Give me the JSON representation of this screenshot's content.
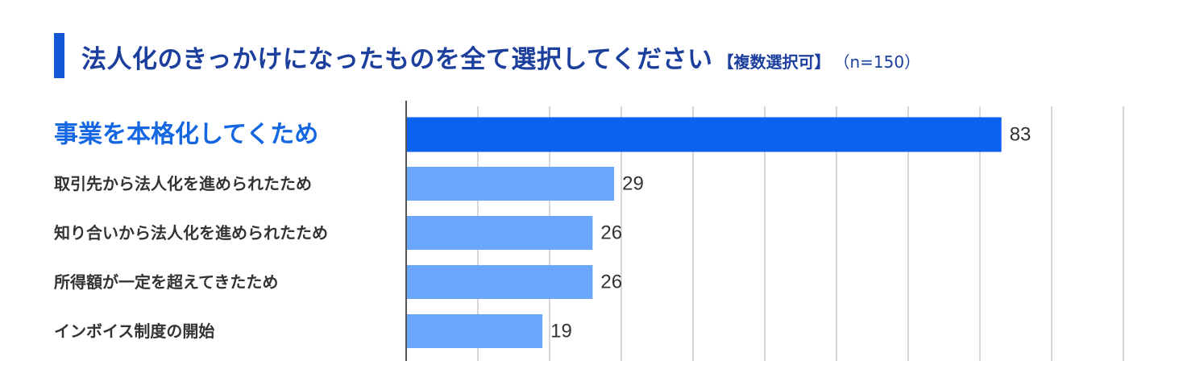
{
  "title": {
    "main": "法人化のきっかけになったものを全て選択してください",
    "tag": "【複数選択可】",
    "n": "（n=150）"
  },
  "colors": {
    "title": "#1c3f9e",
    "title_bar": "#1457d4",
    "highlight_bar": "#0b62f1",
    "bar": "#6aa6fb",
    "highlight_label": "#1467e0",
    "label": "#333333",
    "grid": "#d9d6d9",
    "axis": "#555555"
  },
  "chart_data": {
    "type": "bar",
    "orientation": "horizontal",
    "categories": [
      "事業を本格化してくため",
      "取引先から法人化を進められたため",
      "知り合いから法人化を進められたため",
      "所得額が一定を超えてきたため",
      "インボイス制度の開始"
    ],
    "values": [
      83,
      29,
      26,
      26,
      19
    ],
    "highlight_index": 0,
    "xlim": [
      0,
      100
    ],
    "grid": true,
    "legend": "none"
  }
}
